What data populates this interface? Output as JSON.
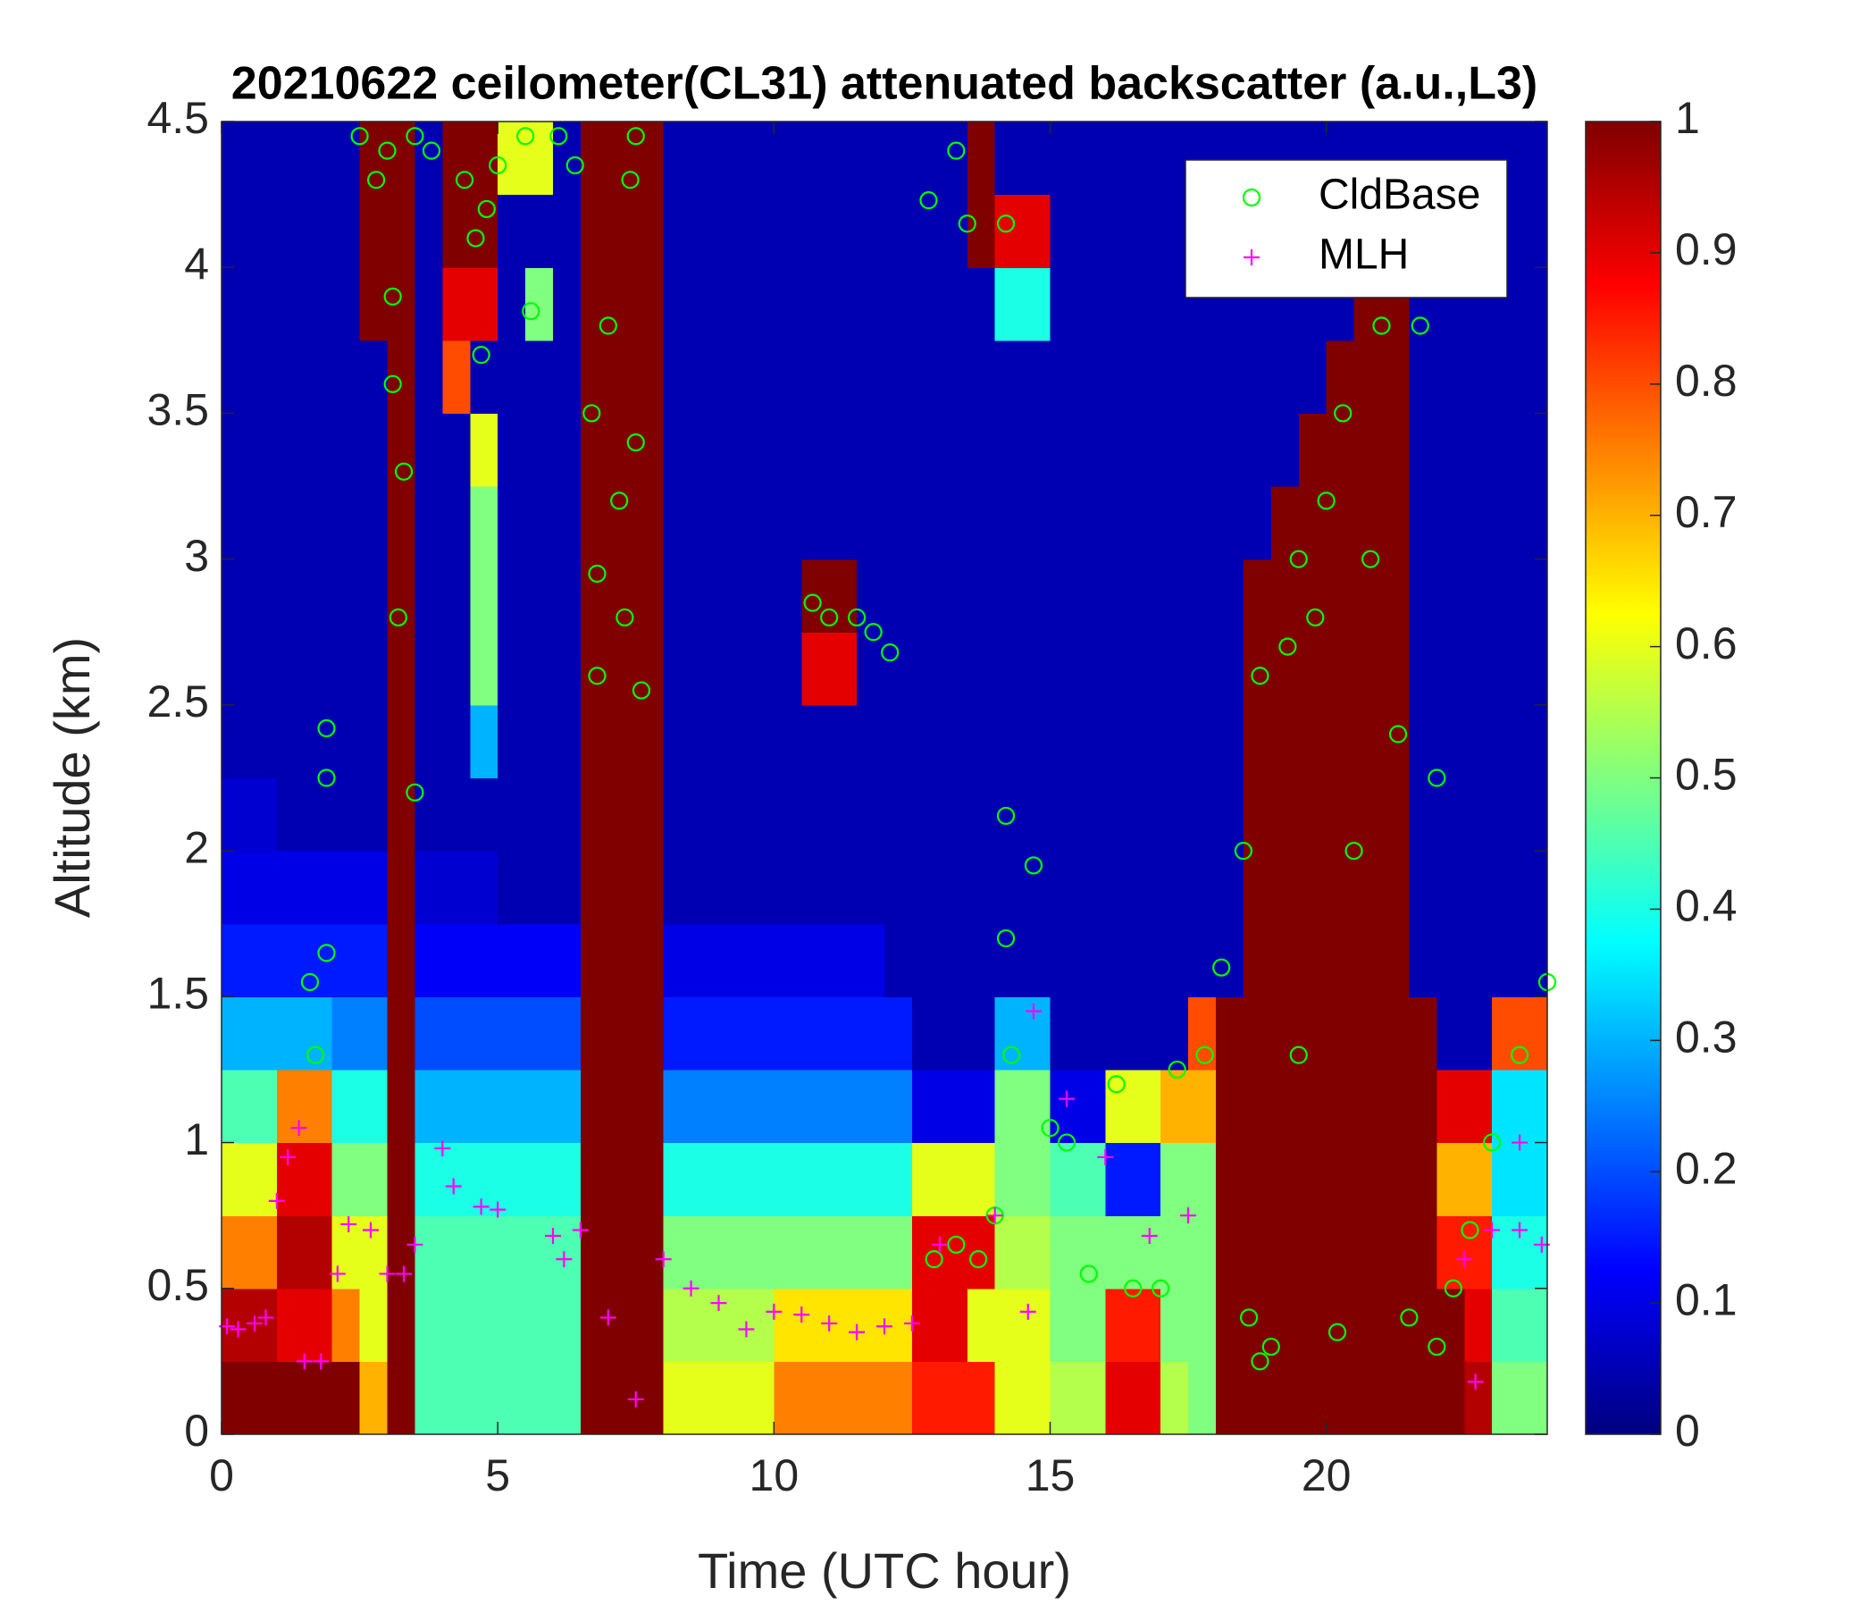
{
  "chart_data": {
    "type": "heatmap",
    "title": "20210622 ceilometer(CL31) attenuated backscatter (a.u.,L3)",
    "x_label": "Time (UTC hour)",
    "y_label": "Altitude (km)",
    "xlim": [
      0,
      24
    ],
    "ylim": [
      0,
      4.5
    ],
    "xticks": [
      0,
      5,
      10,
      15,
      20
    ],
    "yticks": [
      0,
      0.5,
      1,
      1.5,
      2,
      2.5,
      3,
      3.5,
      4,
      4.5
    ],
    "colormap": "jet",
    "clim": [
      0,
      1
    ],
    "cticks": [
      0,
      0.1,
      0.2,
      0.3,
      0.4,
      0.5,
      0.6,
      0.7,
      0.8,
      0.9,
      1
    ],
    "legend": "upper right",
    "x": [
      0.25,
      0.75,
      1.25,
      1.75,
      2.25,
      2.75,
      3.25,
      3.75,
      4.25,
      4.75,
      5.25,
      5.75,
      6.25,
      6.75,
      7.25,
      7.75,
      8.25,
      8.75,
      9.25,
      9.75,
      10.25,
      10.75,
      11.25,
      11.75,
      12.25,
      12.75,
      13.25,
      13.75,
      14.25,
      14.75,
      15.25,
      15.75,
      16.25,
      16.75,
      17.25,
      17.75,
      18.25,
      18.75,
      19.25,
      19.75,
      20.25,
      20.75,
      21.25,
      21.75,
      22.25,
      22.75,
      23.25,
      23.75
    ],
    "y": [
      0.125,
      0.375,
      0.625,
      0.875,
      1.125,
      1.375,
      1.625,
      1.875,
      2.125,
      2.375,
      2.625,
      2.875,
      3.125,
      3.375,
      3.625,
      3.875,
      4.125,
      4.375
    ],
    "z": [
      [
        1,
        1,
        1,
        1,
        1,
        0.7,
        1,
        0.45,
        0.45,
        0.45,
        0.45,
        0.45,
        0.45,
        1,
        1,
        1,
        0.6,
        0.6,
        0.6,
        0.6,
        0.75,
        0.75,
        0.75,
        0.75,
        0.75,
        0.85,
        0.85,
        0.85,
        0.6,
        0.6,
        0.55,
        0.55,
        0.9,
        0.9,
        0.55,
        0.5,
        1,
        1,
        1,
        1,
        1,
        1,
        1,
        1,
        1,
        0.95,
        0.5,
        0.5
      ],
      [
        0.95,
        0.95,
        0.9,
        0.9,
        0.75,
        0.6,
        1,
        0.45,
        0.45,
        0.45,
        0.45,
        0.45,
        0.45,
        1,
        1,
        1,
        0.55,
        0.55,
        0.55,
        0.55,
        0.65,
        0.65,
        0.65,
        0.65,
        0.65,
        0.9,
        0.9,
        0.6,
        0.6,
        0.6,
        0.5,
        0.5,
        0.85,
        0.85,
        0.5,
        0.5,
        1,
        1,
        1,
        1,
        1,
        1,
        1,
        1,
        1,
        0.9,
        0.45,
        0.45
      ],
      [
        0.75,
        0.75,
        0.95,
        0.95,
        0.6,
        0.6,
        1,
        0.45,
        0.45,
        0.45,
        0.45,
        0.45,
        0.45,
        1,
        1,
        1,
        0.5,
        0.5,
        0.5,
        0.5,
        0.5,
        0.5,
        0.5,
        0.5,
        0.5,
        0.9,
        0.9,
        0.9,
        0.55,
        0.55,
        0.5,
        0.5,
        0.5,
        0.5,
        0.5,
        0.5,
        1,
        1,
        1,
        1,
        1,
        1,
        1,
        1,
        0.85,
        0.85,
        0.4,
        0.4
      ],
      [
        0.6,
        0.6,
        0.9,
        0.9,
        0.5,
        0.5,
        1,
        0.4,
        0.4,
        0.4,
        0.4,
        0.4,
        0.4,
        1,
        1,
        1,
        0.4,
        0.4,
        0.4,
        0.4,
        0.4,
        0.4,
        0.4,
        0.4,
        0.4,
        0.6,
        0.6,
        0.6,
        0.5,
        0.5,
        0.45,
        0.45,
        0.15,
        0.15,
        0.5,
        0.5,
        1,
        1,
        1,
        1,
        1,
        1,
        1,
        1,
        0.7,
        0.7,
        0.35,
        0.35
      ],
      [
        0.45,
        0.45,
        0.75,
        0.75,
        0.4,
        0.4,
        1,
        0.3,
        0.3,
        0.3,
        0.3,
        0.3,
        0.3,
        1,
        1,
        1,
        0.25,
        0.25,
        0.25,
        0.25,
        0.25,
        0.25,
        0.25,
        0.25,
        0.25,
        0.1,
        0.1,
        0.1,
        0.5,
        0.5,
        0.1,
        0.1,
        0.6,
        0.6,
        0.7,
        0.7,
        1,
        1,
        1,
        1,
        1,
        1,
        1,
        1,
        0.9,
        0.9,
        0.35,
        0.35
      ],
      [
        0.3,
        0.3,
        0.3,
        0.3,
        0.25,
        0.25,
        1,
        0.2,
        0.2,
        0.2,
        0.2,
        0.2,
        0.2,
        1,
        1,
        1,
        0.15,
        0.15,
        0.15,
        0.15,
        0.15,
        0.15,
        0.15,
        0.15,
        0.15,
        0.05,
        0.05,
        0.05,
        0.3,
        0.3,
        0.05,
        0.05,
        0.05,
        0.05,
        0.05,
        0.8,
        1,
        1,
        1,
        1,
        1,
        1,
        1,
        1,
        0.05,
        0.05,
        0.8,
        0.8
      ],
      [
        0.15,
        0.15,
        0.15,
        0.15,
        0.15,
        0.15,
        1,
        0.12,
        0.12,
        0.12,
        0.12,
        0.12,
        0.12,
        1,
        1,
        1,
        0.1,
        0.1,
        0.1,
        0.1,
        0.1,
        0.1,
        0.1,
        0.1,
        0.05,
        0.05,
        0.05,
        0.05,
        0.05,
        0.05,
        0.05,
        0.05,
        0.05,
        0.05,
        0.05,
        0.05,
        0.05,
        1,
        1,
        1,
        1,
        1,
        1,
        0.05,
        0.05,
        0.05,
        0.05,
        0.05
      ],
      [
        0.1,
        0.1,
        0.1,
        0.1,
        0.1,
        0.1,
        1,
        0.08,
        0.08,
        0.08,
        0.05,
        0.05,
        0.05,
        1,
        1,
        1,
        0.05,
        0.05,
        0.05,
        0.05,
        0.05,
        0.05,
        0.05,
        0.05,
        0.05,
        0.05,
        0.05,
        0.05,
        0.05,
        0.05,
        0.05,
        0.05,
        0.05,
        0.05,
        0.05,
        0.05,
        0.05,
        1,
        1,
        1,
        1,
        1,
        1,
        0.05,
        0.05,
        0.05,
        0.05,
        0.05
      ],
      [
        0.08,
        0.08,
        0.05,
        0.05,
        0.05,
        0.05,
        1,
        0.05,
        0.05,
        0.05,
        0.05,
        0.05,
        0.05,
        1,
        1,
        1,
        0.05,
        0.05,
        0.05,
        0.05,
        0.05,
        0.05,
        0.05,
        0.05,
        0.05,
        0.05,
        0.05,
        0.05,
        0.05,
        0.05,
        0.05,
        0.05,
        0.05,
        0.05,
        0.05,
        0.05,
        0.05,
        1,
        1,
        1,
        1,
        1,
        1,
        0.05,
        0.05,
        0.05,
        0.05,
        0.05
      ],
      [
        0.05,
        0.05,
        0.05,
        0.05,
        0.05,
        0.05,
        1,
        0.05,
        0.05,
        0.3,
        0.05,
        0.05,
        0.05,
        1,
        1,
        1,
        0.05,
        0.05,
        0.05,
        0.05,
        0.05,
        0.05,
        0.05,
        0.05,
        0.05,
        0.05,
        0.05,
        0.05,
        0.05,
        0.05,
        0.05,
        0.05,
        0.05,
        0.05,
        0.05,
        0.05,
        0.05,
        1,
        1,
        1,
        1,
        1,
        1,
        0.05,
        0.05,
        0.05,
        0.05,
        0.05
      ],
      [
        0.05,
        0.05,
        0.05,
        0.05,
        0.05,
        0.05,
        1,
        0.05,
        0.05,
        0.5,
        0.05,
        0.05,
        0.05,
        1,
        1,
        1,
        0.05,
        0.05,
        0.05,
        0.05,
        0.05,
        0.9,
        0.9,
        0.05,
        0.05,
        0.05,
        0.05,
        0.05,
        0.05,
        0.05,
        0.05,
        0.05,
        0.05,
        0.05,
        0.05,
        0.05,
        0.05,
        1,
        1,
        1,
        1,
        1,
        1,
        0.05,
        0.05,
        0.05,
        0.05,
        0.05
      ],
      [
        0.05,
        0.05,
        0.05,
        0.05,
        0.05,
        0.05,
        1,
        0.05,
        0.05,
        0.5,
        0.05,
        0.05,
        0.05,
        1,
        1,
        1,
        0.05,
        0.05,
        0.05,
        0.05,
        0.05,
        1,
        1,
        0.05,
        0.05,
        0.05,
        0.05,
        0.05,
        0.05,
        0.05,
        0.05,
        0.05,
        0.05,
        0.05,
        0.05,
        0.05,
        0.05,
        1,
        1,
        1,
        1,
        1,
        1,
        0.05,
        0.05,
        0.05,
        0.05,
        0.05
      ],
      [
        0.05,
        0.05,
        0.05,
        0.05,
        0.05,
        0.05,
        1,
        0.05,
        0.05,
        0.5,
        0.05,
        0.05,
        0.05,
        1,
        1,
        1,
        0.05,
        0.05,
        0.05,
        0.05,
        0.05,
        0.05,
        0.05,
        0.05,
        0.05,
        0.05,
        0.05,
        0.05,
        0.05,
        0.05,
        0.05,
        0.05,
        0.05,
        0.05,
        0.05,
        0.05,
        0.05,
        0.05,
        1,
        1,
        1,
        1,
        1,
        0.05,
        0.05,
        0.05,
        0.05,
        0.05
      ],
      [
        0.05,
        0.05,
        0.05,
        0.05,
        0.05,
        0.05,
        1,
        0.05,
        0.05,
        0.6,
        0.05,
        0.05,
        0.05,
        1,
        1,
        1,
        0.05,
        0.05,
        0.05,
        0.05,
        0.05,
        0.05,
        0.05,
        0.05,
        0.05,
        0.05,
        0.05,
        0.05,
        0.05,
        0.05,
        0.05,
        0.05,
        0.05,
        0.05,
        0.05,
        0.05,
        0.05,
        0.05,
        0.05,
        1,
        1,
        1,
        1,
        0.05,
        0.05,
        0.05,
        0.05,
        0.05
      ],
      [
        0.05,
        0.05,
        0.05,
        0.05,
        0.05,
        0.05,
        1,
        0.05,
        0.8,
        0.05,
        0.05,
        0.05,
        0.05,
        1,
        1,
        1,
        0.05,
        0.05,
        0.05,
        0.05,
        0.05,
        0.05,
        0.05,
        0.05,
        0.05,
        0.05,
        0.05,
        0.05,
        0.05,
        0.05,
        0.05,
        0.05,
        0.05,
        0.05,
        0.05,
        0.05,
        0.05,
        0.05,
        0.05,
        0.05,
        1,
        1,
        1,
        0.05,
        0.05,
        0.05,
        0.05,
        0.05
      ],
      [
        0.05,
        0.05,
        0.05,
        0.05,
        0.05,
        1,
        1,
        0.05,
        0.9,
        0.9,
        0.05,
        0.5,
        0.05,
        1,
        1,
        1,
        0.05,
        0.05,
        0.05,
        0.05,
        0.05,
        0.05,
        0.05,
        0.05,
        0.05,
        0.05,
        0.05,
        0.05,
        0.4,
        0.4,
        0.05,
        0.05,
        0.05,
        0.05,
        0.05,
        0.05,
        0.05,
        0.05,
        0.05,
        0.05,
        0.05,
        1,
        1,
        0.05,
        0.05,
        0.05,
        0.05,
        0.05
      ],
      [
        0.05,
        0.05,
        0.05,
        0.05,
        0.05,
        1,
        1,
        0.05,
        1,
        1,
        0.05,
        0.05,
        0.05,
        1,
        1,
        1,
        0.05,
        0.05,
        0.05,
        0.05,
        0.05,
        0.05,
        0.05,
        0.05,
        0.05,
        0.05,
        0.05,
        1,
        0.9,
        0.9,
        0.05,
        0.05,
        0.05,
        0.05,
        0.05,
        0.05,
        0.05,
        0.05,
        0.05,
        0.05,
        0.05,
        0.05,
        0.05,
        0.05,
        0.05,
        0.05,
        0.05,
        0.05
      ],
      [
        0.05,
        0.05,
        0.05,
        0.05,
        0.05,
        1,
        1,
        0.05,
        1,
        1,
        0.6,
        0.6,
        0.05,
        1,
        1,
        1,
        0.05,
        0.05,
        0.05,
        0.05,
        0.05,
        0.05,
        0.05,
        0.05,
        0.05,
        0.05,
        0.05,
        1,
        0.05,
        0.05,
        0.05,
        0.05,
        0.05,
        0.05,
        0.05,
        0.05,
        0.05,
        0.05,
        0.05,
        0.05,
        0.05,
        0.05,
        0.05,
        0.05,
        0.05,
        0.05,
        0.05,
        0.05
      ]
    ],
    "series": [
      {
        "name": "CldBase",
        "color": "#00ff00",
        "marker": "o",
        "x": [
          2.5,
          2.8,
          3.0,
          3.1,
          3.1,
          3.2,
          3.3,
          3.5,
          3.5,
          3.8,
          4.4,
          4.6,
          4.7,
          4.8,
          5.0,
          5.5,
          5.6,
          6.1,
          6.4,
          6.7,
          6.8,
          6.8,
          7.0,
          7.2,
          7.3,
          7.4,
          7.5,
          7.6,
          7.5,
          1.6,
          1.7,
          1.9,
          1.9,
          1.9,
          10.7,
          11.0,
          11.5,
          11.8,
          12.1,
          12.8,
          13.3,
          13.5,
          14.2,
          12.9,
          13.3,
          13.7,
          14.0,
          14.2,
          14.2,
          14.3,
          14.7,
          15.0,
          15.3,
          15.7,
          16.2,
          16.5,
          17.0,
          17.3,
          17.8,
          18.1,
          18.5,
          18.8,
          19.0,
          19.3,
          19.5,
          19.8,
          20.0,
          20.3,
          20.5,
          20.8,
          21.0,
          21.5,
          21.7,
          22.0,
          22.3,
          22.6,
          23.0,
          23.5,
          24.0,
          18.6,
          18.8,
          19.5,
          20.2,
          21.3,
          22.0
        ],
        "y": [
          4.45,
          4.3,
          4.4,
          3.9,
          3.6,
          2.8,
          3.3,
          2.2,
          4.45,
          4.4,
          4.3,
          4.1,
          3.7,
          4.2,
          4.35,
          4.45,
          3.85,
          4.45,
          4.35,
          3.5,
          2.95,
          2.6,
          3.8,
          3.2,
          2.8,
          4.3,
          3.4,
          2.55,
          4.45,
          1.55,
          1.3,
          2.25,
          2.42,
          1.65,
          2.85,
          2.8,
          2.8,
          2.75,
          2.68,
          4.23,
          4.4,
          4.15,
          4.15,
          0.6,
          0.65,
          0.6,
          0.75,
          2.12,
          1.7,
          1.3,
          1.95,
          1.05,
          1.0,
          0.55,
          1.2,
          0.5,
          0.5,
          1.25,
          1.3,
          1.6,
          2.0,
          2.6,
          0.3,
          2.7,
          3.0,
          2.8,
          3.2,
          3.5,
          2.0,
          3.0,
          3.8,
          0.4,
          3.8,
          0.3,
          0.5,
          0.7,
          1.0,
          1.3,
          1.55,
          0.4,
          0.25,
          1.3,
          0.35,
          2.4,
          2.25
        ]
      },
      {
        "name": "MLH",
        "color": "#ff00ff",
        "marker": "+",
        "x": [
          0.1,
          0.3,
          0.6,
          0.8,
          1.0,
          1.2,
          1.4,
          1.5,
          1.8,
          2.1,
          2.3,
          2.7,
          3.0,
          3.3,
          3.5,
          4.0,
          4.2,
          4.7,
          5.0,
          6.0,
          6.2,
          6.5,
          7.0,
          7.5,
          8.0,
          8.5,
          9.0,
          9.5,
          10.0,
          10.5,
          11.0,
          11.5,
          12.0,
          12.5,
          13.0,
          14.0,
          14.6,
          14.7,
          15.3,
          16.0,
          16.8,
          17.5,
          22.5,
          22.7,
          23.0,
          23.5,
          23.5,
          23.9
        ],
        "y": [
          0.37,
          0.36,
          0.38,
          0.4,
          0.8,
          0.95,
          1.05,
          0.25,
          0.25,
          0.55,
          0.72,
          0.7,
          0.55,
          0.55,
          0.65,
          0.98,
          0.85,
          0.78,
          0.77,
          0.68,
          0.6,
          0.7,
          0.4,
          0.12,
          0.6,
          0.5,
          0.45,
          0.36,
          0.42,
          0.41,
          0.38,
          0.35,
          0.37,
          0.38,
          0.65,
          0.75,
          0.42,
          1.45,
          1.15,
          0.95,
          0.68,
          0.75,
          0.6,
          0.18,
          0.7,
          1.0,
          0.7,
          0.65
        ]
      }
    ]
  }
}
